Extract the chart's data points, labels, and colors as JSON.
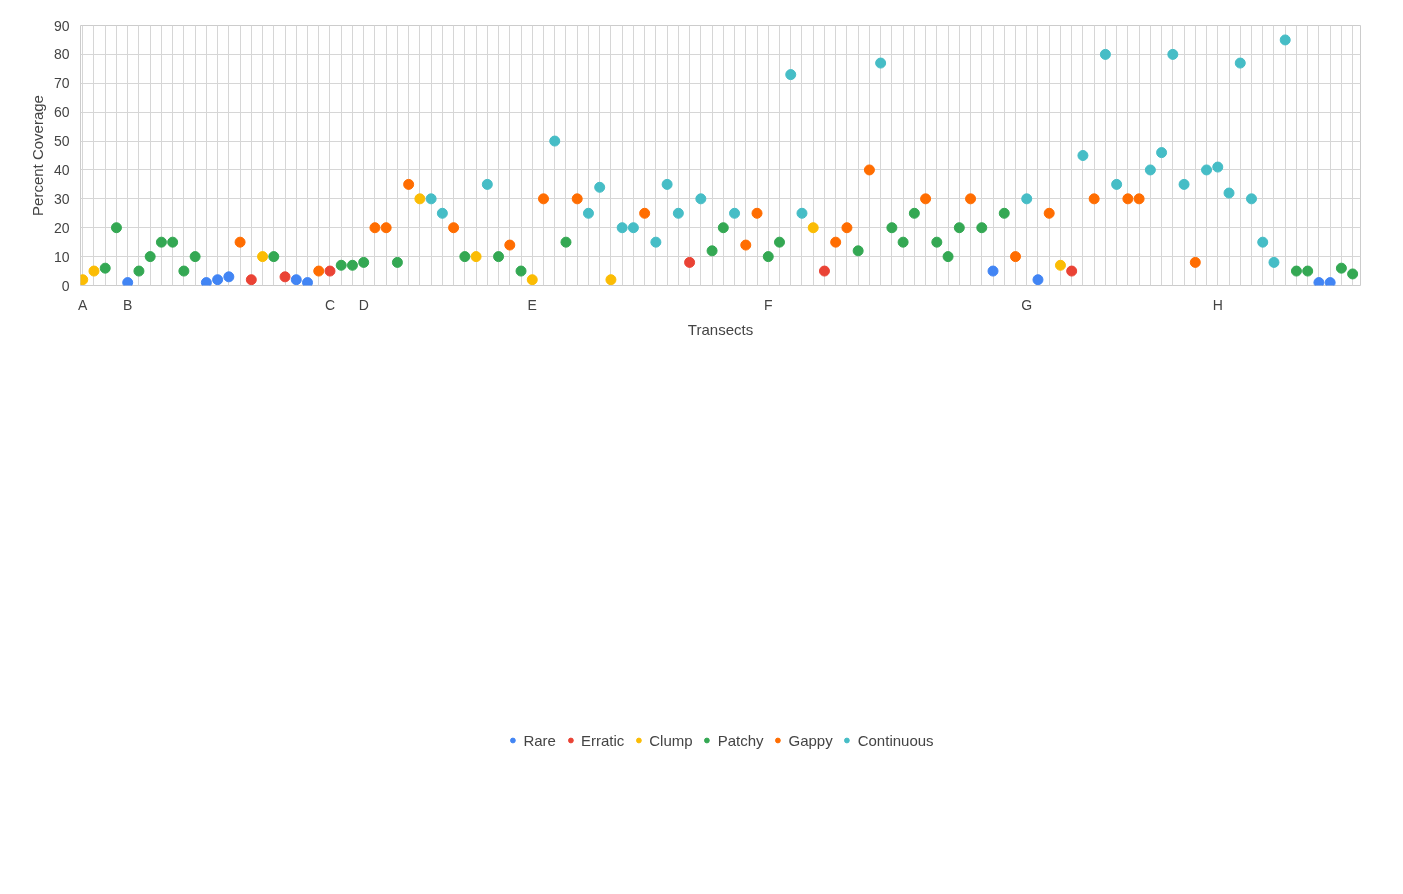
{
  "chart_data": {
    "type": "scatter",
    "xlabel": "Transects",
    "ylabel": "Percent Coverage",
    "categories": [
      "A",
      null,
      null,
      null,
      "B",
      null,
      null,
      null,
      null,
      null,
      null,
      null,
      null,
      null,
      null,
      null,
      null,
      null,
      null,
      null,
      null,
      null,
      "C",
      null,
      null,
      "D",
      null,
      null,
      null,
      null,
      null,
      null,
      null,
      null,
      null,
      null,
      null,
      null,
      null,
      null,
      "E",
      null,
      null,
      null,
      null,
      null,
      null,
      null,
      null,
      null,
      null,
      null,
      null,
      null,
      null,
      null,
      null,
      null,
      null,
      null,
      null,
      "F",
      null,
      null,
      null,
      null,
      null,
      null,
      null,
      null,
      null,
      null,
      null,
      null,
      null,
      null,
      null,
      null,
      null,
      null,
      null,
      null,
      null,
      null,
      "G",
      null,
      null,
      null,
      null,
      null,
      null,
      null,
      null,
      null,
      null,
      null,
      null,
      null,
      null,
      null,
      null,
      "H",
      null,
      null,
      null,
      null,
      null,
      null,
      null,
      null,
      null,
      null,
      null,
      null
    ],
    "series": [
      {
        "name": "Rare",
        "color": "#4285f4",
        "values": [
          null,
          null,
          null,
          null,
          1,
          null,
          null,
          null,
          null,
          null,
          null,
          1,
          2,
          3,
          null,
          null,
          null,
          null,
          null,
          2,
          1,
          null,
          null,
          null,
          null,
          null,
          null,
          null,
          null,
          null,
          null,
          null,
          null,
          null,
          null,
          null,
          null,
          null,
          null,
          null,
          null,
          null,
          null,
          null,
          null,
          null,
          null,
          null,
          null,
          null,
          null,
          null,
          null,
          null,
          null,
          null,
          null,
          null,
          null,
          null,
          null,
          null,
          null,
          null,
          null,
          null,
          null,
          null,
          null,
          null,
          null,
          null,
          null,
          null,
          null,
          null,
          null,
          null,
          null,
          null,
          null,
          5,
          null,
          null,
          null,
          2,
          null,
          null,
          null,
          null,
          null,
          null,
          null,
          null,
          null,
          null,
          null,
          null,
          null,
          null,
          null,
          null,
          null,
          null,
          null,
          null,
          null,
          null,
          null,
          null,
          1,
          1,
          null,
          null
        ]
      },
      {
        "name": "Erratic",
        "color": "#ea4335",
        "values": [
          null,
          null,
          null,
          null,
          null,
          null,
          null,
          null,
          null,
          null,
          null,
          null,
          null,
          null,
          null,
          2,
          null,
          null,
          3,
          null,
          null,
          null,
          5,
          null,
          null,
          null,
          null,
          null,
          null,
          null,
          null,
          null,
          null,
          null,
          null,
          null,
          null,
          null,
          null,
          null,
          null,
          null,
          null,
          null,
          null,
          null,
          null,
          null,
          null,
          null,
          null,
          null,
          null,
          null,
          8,
          null,
          null,
          null,
          null,
          null,
          null,
          null,
          null,
          null,
          null,
          null,
          5,
          null,
          null,
          null,
          null,
          null,
          null,
          null,
          null,
          null,
          null,
          null,
          null,
          null,
          null,
          null,
          null,
          null,
          null,
          null,
          null,
          null,
          5,
          null,
          null,
          null,
          null,
          null,
          null,
          null,
          null,
          null,
          null,
          null,
          null,
          null,
          null,
          null,
          null,
          null,
          null,
          null,
          null,
          null,
          null,
          null,
          null,
          null
        ]
      },
      {
        "name": "Clump",
        "color": "#fbbc04",
        "values": [
          2,
          5,
          null,
          null,
          null,
          null,
          null,
          null,
          null,
          null,
          null,
          null,
          null,
          null,
          null,
          null,
          10,
          null,
          null,
          null,
          null,
          null,
          null,
          null,
          null,
          null,
          null,
          null,
          null,
          null,
          30,
          null,
          null,
          null,
          null,
          10,
          null,
          null,
          null,
          null,
          2,
          null,
          null,
          null,
          null,
          null,
          null,
          2,
          null,
          null,
          null,
          null,
          null,
          null,
          null,
          null,
          null,
          null,
          null,
          null,
          null,
          null,
          null,
          null,
          null,
          20,
          null,
          null,
          null,
          null,
          null,
          null,
          null,
          null,
          null,
          null,
          null,
          null,
          null,
          null,
          null,
          null,
          null,
          null,
          null,
          null,
          null,
          7,
          null,
          null,
          null,
          null,
          null,
          null,
          null,
          null,
          null,
          null,
          null,
          null,
          null,
          null,
          null,
          null,
          null,
          null,
          null,
          null,
          null,
          null,
          null,
          null,
          null,
          null
        ]
      },
      {
        "name": "Patchy",
        "color": "#34a853",
        "values": [
          null,
          null,
          6,
          20,
          null,
          5,
          10,
          15,
          15,
          5,
          10,
          null,
          null,
          null,
          null,
          null,
          null,
          10,
          null,
          null,
          null,
          null,
          null,
          7,
          7,
          8,
          null,
          null,
          8,
          null,
          null,
          null,
          null,
          null,
          10,
          null,
          null,
          10,
          null,
          5,
          null,
          null,
          null,
          15,
          null,
          null,
          null,
          null,
          null,
          null,
          null,
          null,
          null,
          null,
          null,
          null,
          12,
          20,
          null,
          null,
          null,
          10,
          15,
          null,
          null,
          null,
          null,
          null,
          null,
          12,
          null,
          null,
          20,
          15,
          25,
          null,
          15,
          10,
          20,
          null,
          20,
          null,
          25,
          null,
          null,
          null,
          null,
          null,
          null,
          null,
          null,
          null,
          null,
          null,
          null,
          null,
          null,
          null,
          null,
          null,
          null,
          null,
          null,
          null,
          null,
          null,
          null,
          null,
          5,
          5,
          null,
          null,
          6,
          4
        ]
      },
      {
        "name": "Gappy",
        "color": "#ff6d01",
        "values": [
          null,
          null,
          null,
          null,
          null,
          null,
          null,
          null,
          null,
          null,
          null,
          null,
          null,
          null,
          15,
          null,
          null,
          null,
          null,
          null,
          null,
          5,
          null,
          null,
          null,
          null,
          20,
          20,
          null,
          35,
          null,
          null,
          null,
          20,
          null,
          null,
          null,
          null,
          14,
          null,
          null,
          30,
          null,
          null,
          30,
          null,
          null,
          null,
          null,
          null,
          25,
          null,
          null,
          null,
          null,
          null,
          null,
          null,
          null,
          14,
          25,
          null,
          null,
          null,
          null,
          null,
          null,
          15,
          20,
          null,
          40,
          null,
          null,
          null,
          null,
          30,
          null,
          null,
          null,
          30,
          null,
          null,
          null,
          10,
          null,
          null,
          25,
          null,
          null,
          null,
          30,
          null,
          null,
          30,
          30,
          null,
          null,
          null,
          null,
          8,
          null,
          null,
          null,
          null,
          null,
          null,
          null,
          null,
          null,
          null,
          null,
          null,
          null,
          null
        ]
      },
      {
        "name": "Continuous",
        "color": "#46bdc6",
        "values": [
          null,
          null,
          null,
          null,
          null,
          null,
          null,
          null,
          null,
          null,
          null,
          null,
          null,
          null,
          null,
          null,
          null,
          null,
          null,
          null,
          null,
          null,
          null,
          null,
          null,
          null,
          null,
          null,
          null,
          null,
          null,
          30,
          25,
          null,
          null,
          null,
          35,
          null,
          null,
          null,
          null,
          null,
          50,
          null,
          null,
          25,
          34,
          null,
          20,
          20,
          null,
          15,
          35,
          25,
          null,
          30,
          null,
          null,
          25,
          null,
          null,
          null,
          null,
          73,
          25,
          null,
          null,
          null,
          null,
          null,
          null,
          77,
          null,
          null,
          null,
          null,
          null,
          null,
          null,
          null,
          null,
          null,
          null,
          null,
          30,
          null,
          null,
          null,
          null,
          45,
          null,
          80,
          35,
          null,
          null,
          40,
          46,
          80,
          35,
          null,
          40,
          41,
          32,
          77,
          30,
          15,
          8,
          85,
          null,
          null,
          null,
          null,
          null,
          null
        ]
      }
    ],
    "ylim": [
      0,
      90
    ],
    "yticks": [
      0,
      10,
      20,
      30,
      40,
      50,
      60,
      70,
      80,
      90
    ],
    "grid": true,
    "legend": "bottom",
    "marker": "circle"
  }
}
